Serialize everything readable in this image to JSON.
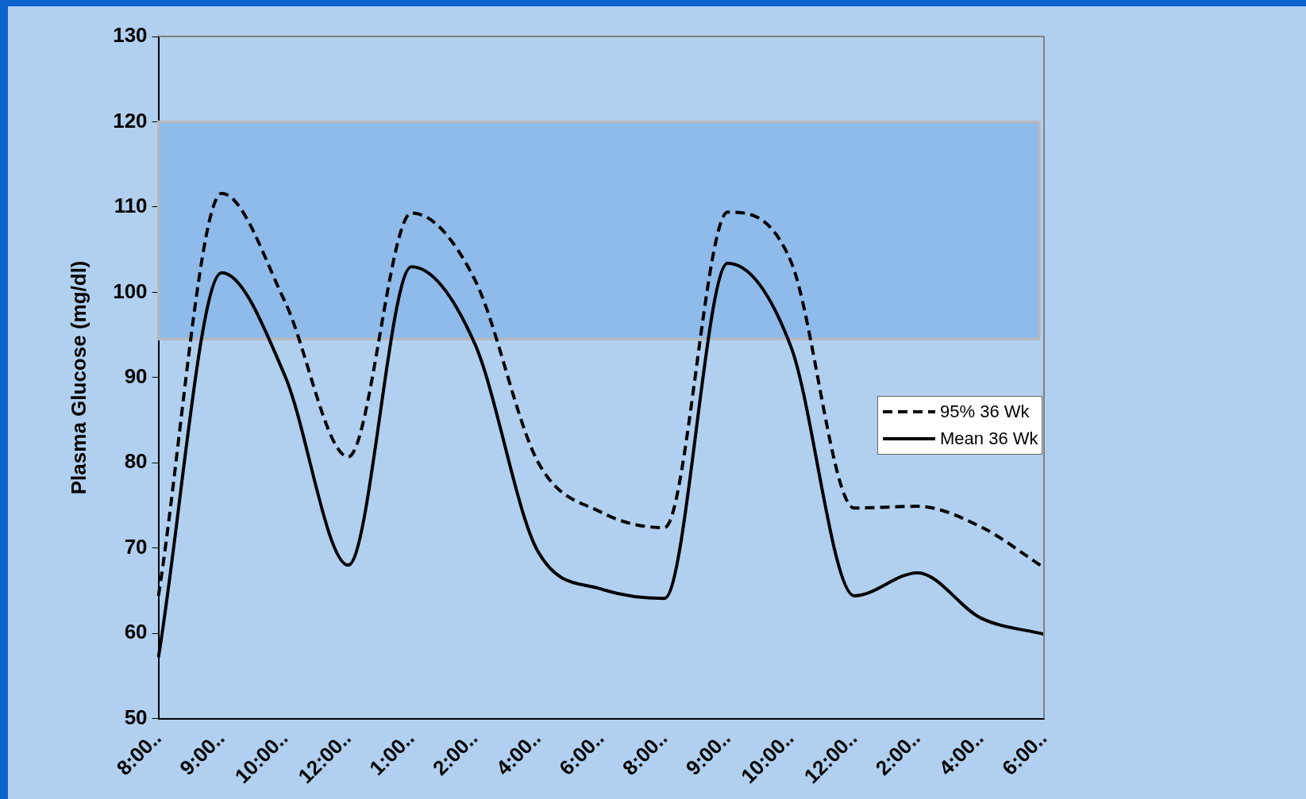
{
  "chart_data": {
    "type": "line",
    "ylabel": "Plasma Glucose (mg/dl)",
    "categories": [
      "8:00..",
      "9:00..",
      "10:00..",
      "12:00..",
      "1:00..",
      "2:00..",
      "4:00..",
      "6:00..",
      "8:00..",
      "9:00..",
      "10:00..",
      "12:00..",
      "2:00..",
      "4:00..",
      "6:00.."
    ],
    "series": [
      {
        "name": "95% 36 Wk",
        "color": "#000000",
        "line_style": "dashed",
        "values": [
          64.4,
          111.6,
          98.9,
          80.7,
          109.3,
          101.5,
          80.1,
          74.2,
          72.4,
          109.4,
          103.6,
          74.7,
          74.9,
          72.5,
          67.7
        ]
      },
      {
        "name": "Mean 36 Wk",
        "color": "#000000",
        "line_style": "solid",
        "values": [
          57.2,
          102.3,
          90.2,
          68.0,
          103.0,
          94.0,
          69.6,
          65.2,
          64.1,
          103.4,
          93.6,
          64.4,
          67.1,
          61.8,
          59.9
        ]
      }
    ],
    "ylim": [
      50,
      130
    ],
    "yticks": [
      50,
      60,
      70,
      80,
      90,
      100,
      110,
      120,
      130
    ],
    "bands": [
      {
        "axis": "y",
        "from": 94.5,
        "to": 120,
        "color": "#8fbbea"
      }
    ],
    "legend": "right",
    "marker": "none",
    "grid": false
  }
}
